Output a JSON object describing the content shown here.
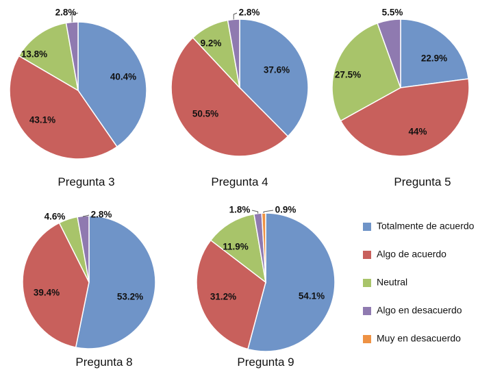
{
  "chart_data": {
    "type": "pie",
    "legend": {
      "placement": "bottom-right",
      "entries": [
        {
          "key": "totalmente",
          "label": "Totalmente de acuerdo",
          "color": "#6f94c8"
        },
        {
          "key": "algo",
          "label": "Algo de acuerdo",
          "color": "#c8605c"
        },
        {
          "key": "neutral",
          "label": "Neutral",
          "color": "#a8c46a"
        },
        {
          "key": "desacuerdo",
          "label": "Algo en desacuerdo",
          "color": "#8f7ab0"
        },
        {
          "key": "muy",
          "label": "Muy en desacuerdo",
          "color": "#ee9244"
        }
      ]
    },
    "pies": [
      {
        "title": "Pregunta 3",
        "slices": [
          {
            "key": "totalmente",
            "value": 40.4,
            "label": "40.4%"
          },
          {
            "key": "algo",
            "value": 43.1,
            "label": "43.1%"
          },
          {
            "key": "neutral",
            "value": 13.8,
            "label": "13.8%"
          },
          {
            "key": "desacuerdo",
            "value": 2.8,
            "label": "2.8%"
          }
        ]
      },
      {
        "title": "Pregunta 4",
        "slices": [
          {
            "key": "totalmente",
            "value": 37.6,
            "label": "37.6%"
          },
          {
            "key": "algo",
            "value": 50.5,
            "label": "50.5%"
          },
          {
            "key": "neutral",
            "value": 9.2,
            "label": "9.2%"
          },
          {
            "key": "desacuerdo",
            "value": 2.8,
            "label": "2.8%"
          }
        ]
      },
      {
        "title": "Pregunta 5",
        "slices": [
          {
            "key": "totalmente",
            "value": 22.9,
            "label": "22.9%"
          },
          {
            "key": "algo",
            "value": 44,
            "label": "44%"
          },
          {
            "key": "neutral",
            "value": 27.5,
            "label": "27.5%"
          },
          {
            "key": "desacuerdo",
            "value": 5.5,
            "label": "5.5%"
          }
        ]
      },
      {
        "title": "Pregunta 8",
        "slices": [
          {
            "key": "totalmente",
            "value": 53.2,
            "label": "53.2%"
          },
          {
            "key": "algo",
            "value": 39.4,
            "label": "39.4%"
          },
          {
            "key": "neutral",
            "value": 4.6,
            "label": "4.6%"
          },
          {
            "key": "desacuerdo",
            "value": 2.8,
            "label": "2.8%"
          }
        ]
      },
      {
        "title": "Pregunta 9",
        "slices": [
          {
            "key": "totalmente",
            "value": 54.1,
            "label": "54.1%"
          },
          {
            "key": "algo",
            "value": 31.2,
            "label": "31.2%"
          },
          {
            "key": "neutral",
            "value": 11.9,
            "label": "11.9%"
          },
          {
            "key": "desacuerdo",
            "value": 1.8,
            "label": "1.8%"
          },
          {
            "key": "muy",
            "value": 0.9,
            "label": "0.9%"
          }
        ]
      }
    ]
  }
}
